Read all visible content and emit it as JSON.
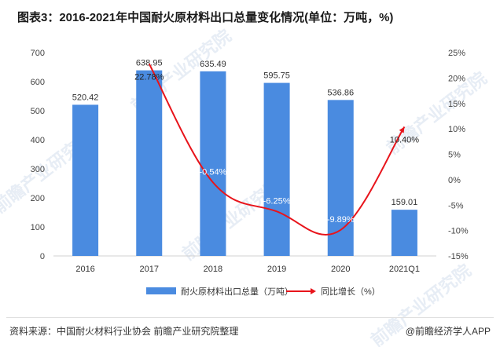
{
  "title": "图表3：2016-2021年中国耐火原材料出口总量变化情况(单位：万吨，%)",
  "source": "资料来源：中国耐火材料行业协会 前瞻产业研究院整理",
  "credit": "@前瞻经济学人APP",
  "watermark": "前瞻产业研究院",
  "chart_data": {
    "type": "bar+line",
    "title": "图表3：2016-2021年中国耐火原材料出口总量变化情况(单位：万吨，%)",
    "categories": [
      "2016",
      "2017",
      "2018",
      "2019",
      "2020",
      "2021Q1"
    ],
    "series": [
      {
        "name": "耐火原材料出口总量（万吨）",
        "type": "bar",
        "axis": "left",
        "color": "#4a8be0",
        "values": [
          520.42,
          638.95,
          635.49,
          595.75,
          536.86,
          159.01
        ],
        "labels": [
          "520.42",
          "638.95",
          "635.49",
          "595.75",
          "536.86",
          "159.01"
        ]
      },
      {
        "name": "同比增长（%）",
        "type": "line",
        "axis": "right",
        "color": "#e8141b",
        "values": [
          null,
          22.78,
          -0.54,
          -6.25,
          -9.89,
          10.4
        ],
        "labels": [
          "",
          "22.78%",
          "-0.54%",
          "-6.25%",
          "-9.89%",
          "10.40%"
        ]
      }
    ],
    "y_left": {
      "min": 0,
      "max": 700,
      "ticks": [
        "0",
        "100",
        "200",
        "300",
        "400",
        "500",
        "600",
        "700"
      ]
    },
    "y_right": {
      "min": -15,
      "max": 25,
      "ticks": [
        "-15%",
        "-10%",
        "-5%",
        "0%",
        "5%",
        "10%",
        "15%",
        "20%",
        "25%"
      ]
    },
    "legend": [
      "耐火原材料出口总量（万吨）",
      "同比增长（%）"
    ]
  }
}
